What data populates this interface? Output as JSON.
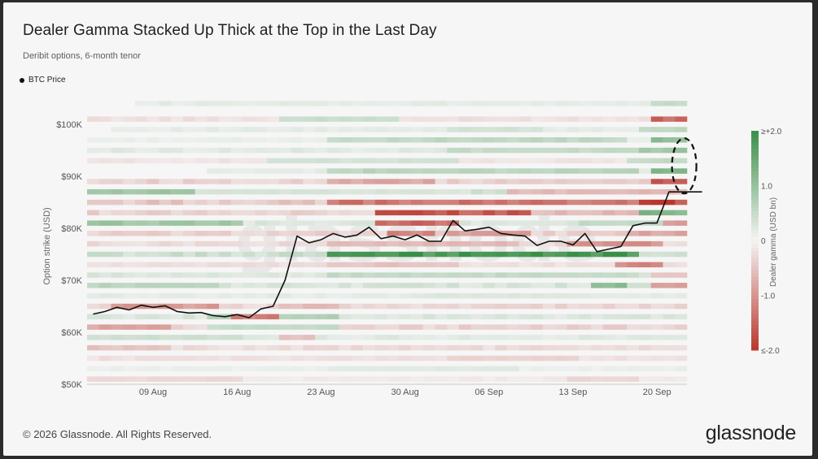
{
  "title": "Dealer Gamma Stacked Up Thick at the Top in the Last Day",
  "subtitle": "Deribit options, 6-month tenor",
  "footer": "© 2026 Glassnode. All Rights Reserved.",
  "logo": "glassnode",
  "watermark": "glassnode",
  "legend": {
    "series_label": "BTC Price"
  },
  "colors": {
    "positive": "#3a8f47",
    "negative": "#b8362c",
    "price_line": "#111111",
    "annotation": "#111111"
  },
  "chart_data": {
    "type": "heatmap",
    "xlabel": "",
    "ylabel": "Option strike (USD)",
    "colorbar_label": "Dealer gamma (USD bn)",
    "colorbar_ticks": [
      "≥+2.0",
      "1.0",
      "0",
      "-1.0",
      "≤-2.0"
    ],
    "colorbar_range": [
      -2.0,
      2.0
    ],
    "ylim": [
      50000,
      105000
    ],
    "yticks": [
      {
        "value": 100000,
        "label": "$100K"
      },
      {
        "value": 90000,
        "label": "$90K"
      },
      {
        "value": 80000,
        "label": "$80K"
      },
      {
        "value": 70000,
        "label": "$70K"
      },
      {
        "value": 60000,
        "label": "$60K"
      },
      {
        "value": 50000,
        "label": "$50K"
      }
    ],
    "xticks": [
      "09 Aug",
      "16 Aug",
      "23 Aug",
      "30 Aug",
      "06 Sep",
      "13 Sep",
      "20 Sep"
    ],
    "dates": [
      "04 Aug",
      "05 Aug",
      "06 Aug",
      "07 Aug",
      "08 Aug",
      "09 Aug",
      "10 Aug",
      "11 Aug",
      "12 Aug",
      "13 Aug",
      "14 Aug",
      "15 Aug",
      "16 Aug",
      "17 Aug",
      "18 Aug",
      "19 Aug",
      "20 Aug",
      "21 Aug",
      "22 Aug",
      "23 Aug",
      "24 Aug",
      "25 Aug",
      "26 Aug",
      "27 Aug",
      "28 Aug",
      "29 Aug",
      "30 Aug",
      "31 Aug",
      "01 Sep",
      "02 Sep",
      "03 Sep",
      "04 Sep",
      "05 Sep",
      "06 Sep",
      "07 Sep",
      "08 Sep",
      "09 Sep",
      "10 Sep",
      "11 Sep",
      "12 Sep",
      "13 Sep",
      "14 Sep",
      "15 Sep",
      "16 Sep",
      "17 Sep",
      "18 Sep",
      "19 Sep",
      "20 Sep",
      "21 Sep",
      "22 Sep"
    ],
    "btc_price": [
      63500,
      64000,
      64800,
      64300,
      65200,
      64800,
      65100,
      64000,
      63700,
      63800,
      63200,
      63000,
      63400,
      62800,
      64500,
      65000,
      70000,
      78500,
      77200,
      77800,
      79000,
      78300,
      78700,
      80200,
      78000,
      78500,
      77800,
      78700,
      77500,
      77500,
      81500,
      79500,
      79800,
      80200,
      79000,
      78700,
      78500,
      76700,
      77500,
      77500,
      76800,
      79000,
      75500,
      76000,
      76500,
      80500,
      81000,
      81000,
      87000,
      87000
    ],
    "price_series_name": "BTC Price",
    "strikes": [
      104000,
      101000,
      99000,
      97000,
      95000,
      93000,
      91000,
      89000,
      87000,
      85000,
      83000,
      81000,
      79000,
      77000,
      75000,
      73000,
      71000,
      69000,
      67000,
      65000,
      63000,
      61000,
      59000,
      57000,
      55000,
      53000,
      51000
    ],
    "gamma_rows": [
      {
        "strike": 104000,
        "base": 0.15,
        "start": 4,
        "end": 49,
        "hot": [
          [
            47,
            49,
            0.5
          ]
        ]
      },
      {
        "strike": 101000,
        "base": -0.2,
        "start": 0,
        "end": 49,
        "hot": [
          [
            16,
            25,
            0.45
          ],
          [
            47,
            49,
            -1.4
          ]
        ]
      },
      {
        "strike": 99000,
        "base": 0.15,
        "start": 2,
        "end": 49,
        "hot": [
          [
            30,
            37,
            0.35
          ],
          [
            46,
            49,
            0.6
          ]
        ]
      },
      {
        "strike": 97000,
        "base": 0.1,
        "start": 0,
        "end": 49,
        "hot": [
          [
            20,
            44,
            0.55
          ],
          [
            47,
            49,
            1.1
          ]
        ]
      },
      {
        "strike": 95000,
        "base": 0.2,
        "start": 0,
        "end": 49,
        "hot": [
          [
            30,
            45,
            0.5
          ],
          [
            46,
            49,
            0.9
          ]
        ]
      },
      {
        "strike": 93000,
        "base": -0.15,
        "start": 0,
        "end": 49,
        "hot": [
          [
            15,
            30,
            0.35
          ],
          [
            45,
            49,
            0.5
          ]
        ]
      },
      {
        "strike": 91000,
        "base": 0.15,
        "start": 10,
        "end": 49,
        "hot": [
          [
            20,
            45,
            0.6
          ],
          [
            47,
            49,
            1.3
          ]
        ]
      },
      {
        "strike": 89000,
        "base": -0.35,
        "start": 0,
        "end": 49,
        "hot": [
          [
            20,
            28,
            -0.8
          ],
          [
            35,
            45,
            -0.4
          ],
          [
            47,
            49,
            -1.5
          ]
        ]
      },
      {
        "strike": 87000,
        "base": 0.35,
        "start": 0,
        "end": 49,
        "hot": [
          [
            0,
            8,
            0.9
          ],
          [
            9,
            30,
            0.3
          ],
          [
            35,
            49,
            -0.6
          ]
        ]
      },
      {
        "strike": 85000,
        "base": -0.45,
        "start": 0,
        "end": 49,
        "hot": [
          [
            20,
            45,
            -1.3
          ],
          [
            46,
            49,
            -1.8
          ]
        ]
      },
      {
        "strike": 83000,
        "base": -0.35,
        "start": 0,
        "end": 49,
        "hot": [
          [
            24,
            36,
            -1.6
          ],
          [
            38,
            45,
            -0.6
          ],
          [
            46,
            49,
            1.2
          ]
        ]
      },
      {
        "strike": 81000,
        "base": 0.25,
        "start": 0,
        "end": 49,
        "hot": [
          [
            0,
            12,
            0.9
          ],
          [
            24,
            30,
            -1.4
          ],
          [
            41,
            47,
            0.5
          ],
          [
            48,
            49,
            -0.9
          ]
        ]
      },
      {
        "strike": 79000,
        "base": -0.35,
        "start": 0,
        "end": 49,
        "hot": [
          [
            25,
            28,
            -1.2
          ],
          [
            30,
            36,
            -0.9
          ],
          [
            45,
            49,
            -0.8
          ]
        ]
      },
      {
        "strike": 77000,
        "base": -0.25,
        "start": 0,
        "end": 49,
        "hot": [
          [
            20,
            35,
            -0.6
          ],
          [
            40,
            47,
            -1.0
          ]
        ]
      },
      {
        "strike": 75000,
        "base": 0.4,
        "start": 0,
        "end": 49,
        "hot": [
          [
            20,
            45,
            1.85
          ],
          [
            46,
            49,
            0.4
          ]
        ]
      },
      {
        "strike": 73000,
        "base": -0.2,
        "start": 0,
        "end": 49,
        "hot": [
          [
            20,
            30,
            -0.5
          ],
          [
            44,
            47,
            -1.1
          ]
        ]
      },
      {
        "strike": 71000,
        "base": 0.25,
        "start": 0,
        "end": 49,
        "hot": [
          [
            20,
            45,
            0.5
          ],
          [
            47,
            49,
            -0.5
          ]
        ]
      },
      {
        "strike": 69000,
        "base": 0.3,
        "start": 0,
        "end": 49,
        "hot": [
          [
            0,
            10,
            0.6
          ],
          [
            42,
            44,
            1.1
          ],
          [
            47,
            49,
            -0.9
          ]
        ]
      },
      {
        "strike": 67000,
        "base": 0.15,
        "start": 0,
        "end": 49,
        "hot": [
          [
            28,
            40,
            0.25
          ]
        ]
      },
      {
        "strike": 65000,
        "base": -0.3,
        "start": 0,
        "end": 49,
        "hot": [
          [
            2,
            10,
            -0.9
          ],
          [
            16,
            20,
            -0.6
          ]
        ]
      },
      {
        "strike": 63000,
        "base": 0.25,
        "start": 0,
        "end": 49,
        "hot": [
          [
            10,
            20,
            0.7
          ],
          [
            12,
            15,
            -1.2
          ]
        ]
      },
      {
        "strike": 61000,
        "base": -0.35,
        "start": 0,
        "end": 49,
        "hot": [
          [
            0,
            6,
            -0.8
          ],
          [
            10,
            20,
            0.5
          ]
        ]
      },
      {
        "strike": 59000,
        "base": 0.2,
        "start": 0,
        "end": 49,
        "hot": [
          [
            0,
            12,
            0.4
          ],
          [
            16,
            18,
            -0.5
          ]
        ]
      },
      {
        "strike": 57000,
        "base": -0.25,
        "start": 0,
        "end": 49,
        "hot": [
          [
            0,
            6,
            -0.5
          ]
        ]
      },
      {
        "strike": 55000,
        "base": -0.2,
        "start": 0,
        "end": 49,
        "hot": [
          [
            30,
            40,
            -0.35
          ]
        ]
      },
      {
        "strike": 53000,
        "base": 0.1,
        "start": 0,
        "end": 49,
        "hot": [
          [
            20,
            35,
            0.2
          ]
        ]
      },
      {
        "strike": 51000,
        "base": -0.1,
        "start": 0,
        "end": 49,
        "hot": [
          [
            0,
            12,
            -0.3
          ],
          [
            40,
            45,
            -0.3
          ]
        ]
      }
    ]
  }
}
